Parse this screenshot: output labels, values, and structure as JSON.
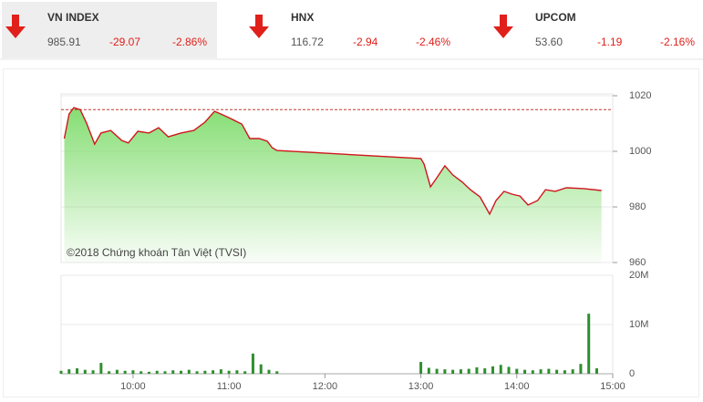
{
  "header": {
    "indices": [
      {
        "name": "VN INDEX",
        "value": "985.91",
        "change": "-29.07",
        "percent": "-2.86%"
      },
      {
        "name": "HNX",
        "value": "116.72",
        "change": "-2.94",
        "percent": "-2.46%"
      },
      {
        "name": "UPCOM",
        "value": "53.60",
        "change": "-1.19",
        "percent": "-2.16%"
      }
    ]
  },
  "chart_data": [
    {
      "type": "line",
      "annotation": "©2018 Chứng khoán Tân Việt (TVSI)",
      "color": "#d0151b",
      "fill": "#7fdc6c",
      "reference": 1014.98,
      "xlim": [
        "09:15",
        "15:00"
      ],
      "ylim": [
        960,
        1020
      ],
      "yticks": [
        960,
        980,
        1000,
        1020
      ],
      "grid": true,
      "x": [
        "09:17",
        "09:20",
        "09:23",
        "09:27",
        "09:31",
        "09:36",
        "09:40",
        "09:46",
        "09:53",
        "09:57",
        "10:03",
        "10:10",
        "10:16",
        "10:22",
        "10:30",
        "10:38",
        "10:45",
        "10:51",
        "10:55",
        "11:01",
        "11:08",
        "11:13",
        "11:19",
        "11:24",
        "11:27",
        "11:30",
        "13:00",
        "13:02",
        "13:06",
        "13:10",
        "13:15",
        "13:20",
        "13:26",
        "13:31",
        "13:37",
        "13:43",
        "13:47",
        "13:52",
        "13:57",
        "14:02",
        "14:07",
        "14:13",
        "14:18",
        "14:24",
        "14:31",
        "14:42",
        "14:53"
      ],
      "values": [
        1004.6,
        1013.4,
        1015.7,
        1015,
        1010,
        1002.6,
        1006.6,
        1007.5,
        1003.9,
        1003,
        1007.2,
        1006.6,
        1008.5,
        1005.2,
        1006.6,
        1007.5,
        1010.5,
        1014.4,
        1013.4,
        1011.8,
        1009.8,
        1004.6,
        1004.6,
        1003.6,
        1001.3,
        1000.3,
        997.4,
        995.4,
        987.2,
        990.5,
        994.8,
        991.5,
        988.9,
        986.2,
        983.6,
        977.4,
        982.3,
        985.6,
        984.6,
        983.9,
        980.7,
        982.3,
        986.2,
        985.6,
        986.9,
        986.6,
        985.91
      ]
    },
    {
      "type": "bar",
      "color": "#2f8f2f",
      "xlim": [
        "09:15",
        "15:00"
      ],
      "xticks": [
        "10:00",
        "11:00",
        "12:00",
        "13:00",
        "14:00",
        "15:00"
      ],
      "ylim": [
        0,
        20000000
      ],
      "yticks": [
        0,
        {
          "value": 10000000,
          "label": "10M"
        },
        {
          "value": 20000000,
          "label": "20M"
        }
      ],
      "grid": true,
      "x": [
        "09:15",
        "09:20",
        "09:25",
        "09:30",
        "09:35",
        "09:40",
        "09:45",
        "09:50",
        "09:55",
        "10:00",
        "10:05",
        "10:10",
        "10:15",
        "10:20",
        "10:25",
        "10:30",
        "10:35",
        "10:40",
        "10:45",
        "10:50",
        "10:55",
        "11:00",
        "11:05",
        "11:10",
        "11:15",
        "11:20",
        "11:25",
        "11:30",
        "13:00",
        "13:05",
        "13:10",
        "13:15",
        "13:20",
        "13:25",
        "13:30",
        "13:35",
        "13:40",
        "13:45",
        "13:50",
        "13:55",
        "14:00",
        "14:05",
        "14:10",
        "14:15",
        "14:20",
        "14:25",
        "14:30",
        "14:35",
        "14:40",
        "14:45",
        "14:50"
      ],
      "values": [
        600000,
        900000,
        1100000,
        800000,
        700000,
        2200000,
        500000,
        800000,
        600000,
        700000,
        500000,
        400000,
        600000,
        500000,
        700000,
        600000,
        800000,
        500000,
        600000,
        700000,
        900000,
        600000,
        700000,
        500000,
        4100000,
        1900000,
        800000,
        500000,
        2400000,
        1200000,
        1000000,
        900000,
        800000,
        900000,
        1000000,
        1300000,
        1100000,
        1500000,
        1800000,
        1400000,
        1000000,
        800000,
        700000,
        900000,
        1000000,
        800000,
        700000,
        900000,
        2000000,
        12200000,
        1100000
      ]
    }
  ]
}
